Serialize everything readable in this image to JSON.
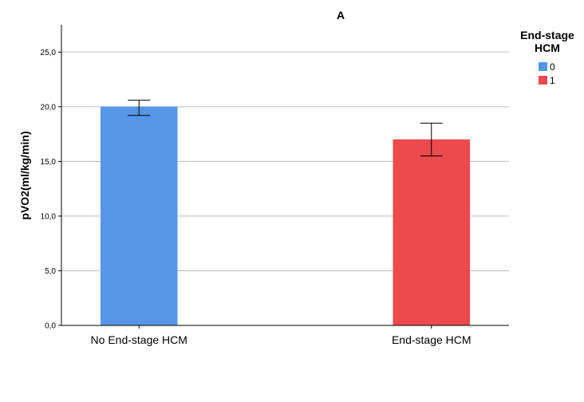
{
  "chart_data": {
    "type": "bar",
    "title": "A",
    "ylabel": "pVO2(ml/kg/min)",
    "xlabel": "",
    "categories": [
      "No End-stage HCM",
      "End-stage HCM"
    ],
    "series": [
      {
        "name": "0",
        "color": "#5596e6",
        "values": [
          20.0,
          null
        ],
        "error": [
          [
            19.2,
            20.6
          ],
          null
        ]
      },
      {
        "name": "1",
        "color": "#ec4a4c",
        "values": [
          null,
          17.0
        ],
        "error": [
          null,
          [
            15.5,
            18.5
          ]
        ]
      }
    ],
    "ylim": [
      0,
      27.5
    ],
    "yticks": [
      "0,0",
      "5,0",
      "10,0",
      "15,0",
      "20,0",
      "25,0"
    ],
    "ytick_values": [
      0,
      5,
      10,
      15,
      20,
      25
    ],
    "grid": true,
    "legend": {
      "title_lines": [
        "End-stage",
        "HCM"
      ],
      "placement": "right"
    }
  }
}
